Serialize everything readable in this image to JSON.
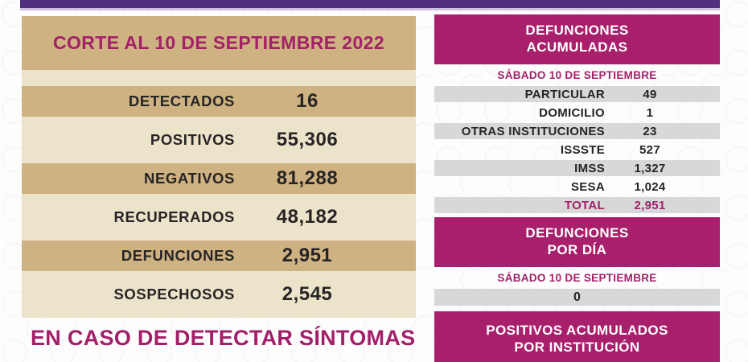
{
  "colors": {
    "top_bar_purple": "#53307f",
    "accent_magenta": "#a81f6b",
    "magenta_text": "#a32069",
    "tan": "#cfb281",
    "cream": "#ece3cb",
    "row_gray": "#d8d8d8",
    "text_dark": "#262424",
    "header_text_white": "#ffffff"
  },
  "left_panel": {
    "title": "CORTE AL 10 DE SEPTIEMBRE 2022",
    "rows": [
      {
        "label": "DETECTADOS",
        "value": "16"
      },
      {
        "label": "POSITIVOS",
        "value": "55,306"
      },
      {
        "label": "NEGATIVOS",
        "value": "81,288"
      },
      {
        "label": "RECUPERADOS",
        "value": "48,182"
      },
      {
        "label": "DEFUNCIONES",
        "value": "2,951"
      },
      {
        "label": "SOSPECHOSOS",
        "value": "2,545"
      }
    ],
    "footer_note": "EN CASO DE DETECTAR SÍNTOMAS"
  },
  "right_panel": {
    "deaths_accumulated": {
      "title_line1": "DEFUNCIONES",
      "title_line2": "ACUMULADAS",
      "date": "SÁBADO 10 DE SEPTIEMBRE",
      "rows": [
        {
          "label": "PARTICULAR",
          "value": "49"
        },
        {
          "label": "DOMICILIO",
          "value": "1"
        },
        {
          "label": "OTRAS INSTITUCIONES",
          "value": "23"
        },
        {
          "label": "ISSSTE",
          "value": "527"
        },
        {
          "label": "IMSS",
          "value": "1,327"
        },
        {
          "label": "SESA",
          "value": "1,024"
        },
        {
          "label": "TOTAL",
          "value": "2,951"
        }
      ]
    },
    "deaths_per_day": {
      "title_line1": "DEFUNCIONES",
      "title_line2": "POR DÍA",
      "date": "SÁBADO 10 DE SEPTIEMBRE",
      "value": "0"
    },
    "positives_by_institution": {
      "title_line1": "POSITIVOS ACUMULADOS",
      "title_line2": "POR INSTITUCIÓN"
    }
  }
}
